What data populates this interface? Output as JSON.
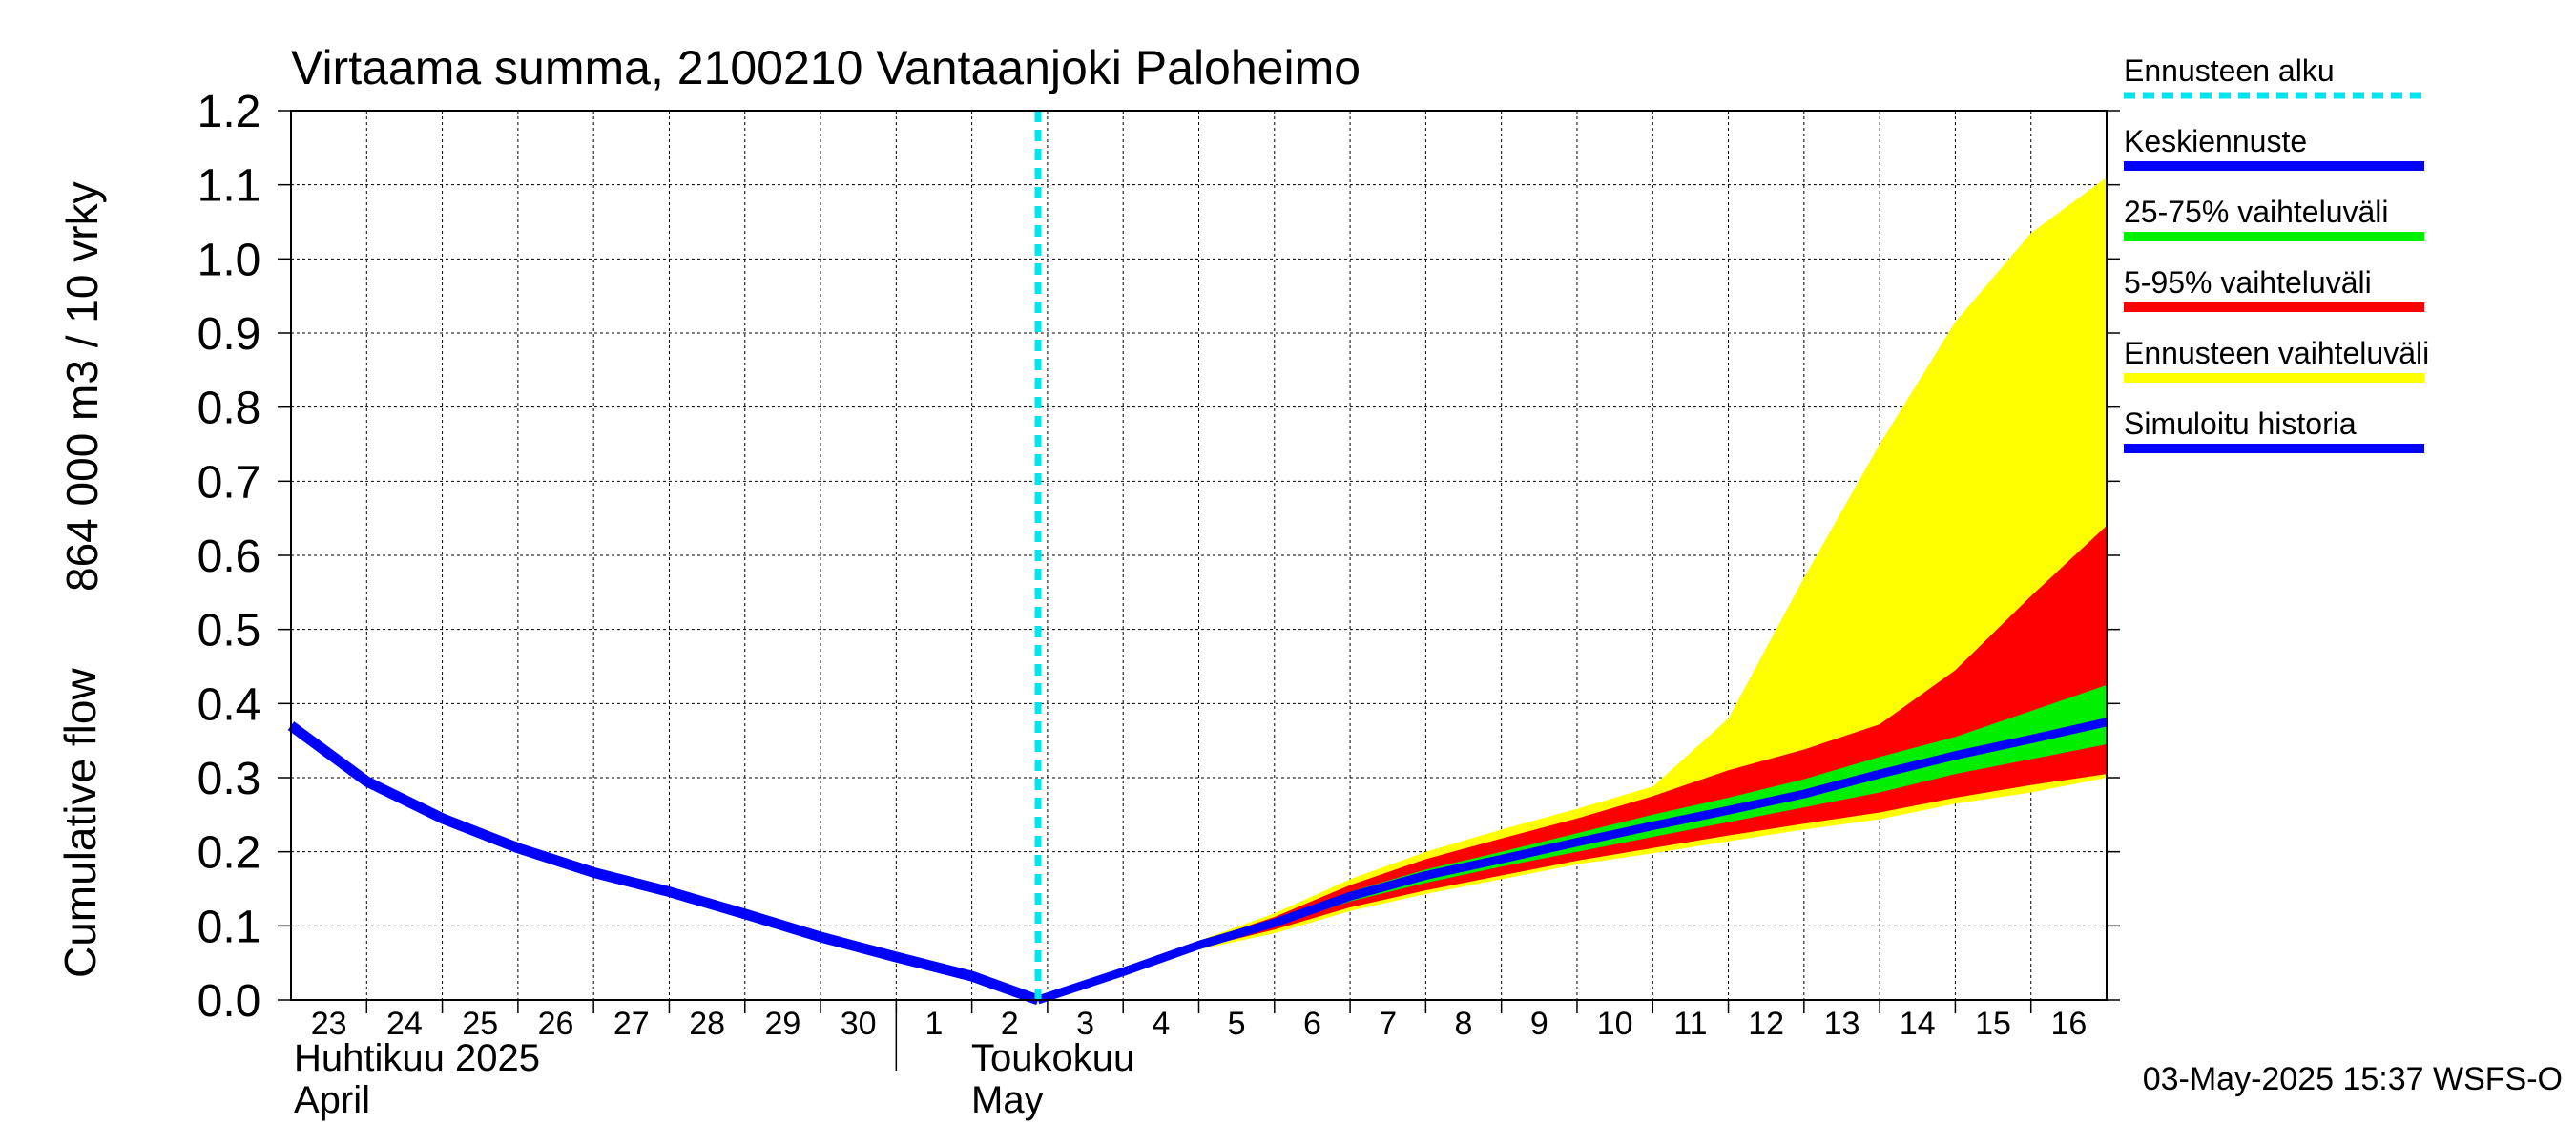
{
  "chart_data": {
    "type": "area",
    "title": "Virtaama summa, 2100210 Vantaanjoki Paloheimo",
    "ylabel_1": "864 000 m3 / 10 vrky",
    "ylabel_2": "Cumulative flow",
    "ylim": [
      0.0,
      1.2
    ],
    "y_ticks": [
      "0.0",
      "0.1",
      "0.2",
      "0.3",
      "0.4",
      "0.5",
      "0.6",
      "0.7",
      "0.8",
      "0.9",
      "1.0",
      "1.1",
      "1.2"
    ],
    "x_ticks": [
      "23",
      "24",
      "25",
      "26",
      "27",
      "28",
      "29",
      "30",
      "1",
      "2",
      "3",
      "4",
      "5",
      "6",
      "7",
      "8",
      "9",
      "10",
      "11",
      "12",
      "13",
      "14",
      "15",
      "16"
    ],
    "xlim": [
      "2025-04-23",
      "2025-05-17"
    ],
    "month_labels": [
      {
        "line1": "Huhtikuu  2025",
        "line2": "April"
      },
      {
        "line1": "Toukokuu",
        "line2": "May"
      }
    ],
    "month_boundary": "2025-05-01",
    "forecast_start": "2025-05-02 21:00",
    "grid": true,
    "legend_position": "right",
    "legend": [
      {
        "label": "Ennusteen alku",
        "color": "#00e5ee",
        "style": "dashed"
      },
      {
        "label": "Keskiennuste",
        "color": "#0000ff",
        "style": "solid"
      },
      {
        "label": "25-75% vaihteluväli",
        "color": "#00ee00",
        "style": "solid"
      },
      {
        "label": "5-95% vaihteluväli",
        "color": "#ff0000",
        "style": "solid"
      },
      {
        "label": "Ennusteen vaihteluväli",
        "color": "#ffff00",
        "style": "solid"
      },
      {
        "label": "Simuloitu historia",
        "color": "#0000ff",
        "style": "solid"
      }
    ],
    "colors": {
      "history": "#0000ff",
      "median": "#0000ff",
      "iqr": "#00ee00",
      "p5_95": "#ff0000",
      "range": "#ffff00",
      "forecast_start": "#00e5ee"
    },
    "history": {
      "x": [
        "2025-04-23",
        "2025-04-24",
        "2025-04-25",
        "2025-04-26",
        "2025-04-27",
        "2025-04-28",
        "2025-04-29",
        "2025-04-30",
        "2025-05-01",
        "2025-05-02",
        "2025-05-02 21:00"
      ],
      "y": [
        0.37,
        0.295,
        0.245,
        0.205,
        0.172,
        0.146,
        0.116,
        0.085,
        0.058,
        0.032,
        0.0
      ]
    },
    "forecast": {
      "x": [
        "2025-05-02 21:00",
        "2025-05-04",
        "2025-05-05",
        "2025-05-06",
        "2025-05-07",
        "2025-05-08",
        "2025-05-09",
        "2025-05-10",
        "2025-05-11",
        "2025-05-12",
        "2025-05-13",
        "2025-05-14",
        "2025-05-15",
        "2025-05-16",
        "2025-05-17"
      ],
      "min": [
        0.0,
        0.035,
        0.068,
        0.09,
        0.12,
        0.143,
        0.163,
        0.183,
        0.198,
        0.214,
        0.23,
        0.244,
        0.265,
        0.28,
        0.3
      ],
      "p5": [
        0.0,
        0.036,
        0.07,
        0.095,
        0.125,
        0.148,
        0.168,
        0.188,
        0.205,
        0.222,
        0.238,
        0.253,
        0.273,
        0.29,
        0.305
      ],
      "p25": [
        0.0,
        0.037,
        0.072,
        0.1,
        0.133,
        0.158,
        0.18,
        0.2,
        0.22,
        0.24,
        0.26,
        0.28,
        0.305,
        0.325,
        0.345
      ],
      "median": [
        0.0,
        0.038,
        0.074,
        0.104,
        0.14,
        0.168,
        0.19,
        0.213,
        0.235,
        0.256,
        0.278,
        0.305,
        0.33,
        0.352,
        0.375
      ],
      "p75": [
        0.0,
        0.039,
        0.076,
        0.108,
        0.146,
        0.176,
        0.2,
        0.225,
        0.25,
        0.273,
        0.298,
        0.328,
        0.355,
        0.39,
        0.425
      ],
      "p95": [
        0.0,
        0.04,
        0.078,
        0.112,
        0.155,
        0.19,
        0.218,
        0.245,
        0.275,
        0.31,
        0.338,
        0.372,
        0.445,
        0.545,
        0.64
      ],
      "max": [
        0.0,
        0.041,
        0.08,
        0.117,
        0.163,
        0.2,
        0.23,
        0.258,
        0.288,
        0.38,
        0.57,
        0.75,
        0.915,
        1.035,
        1.11
      ]
    }
  },
  "footer": {
    "timestamp": "03-May-2025 15:37 WSFS-O"
  }
}
